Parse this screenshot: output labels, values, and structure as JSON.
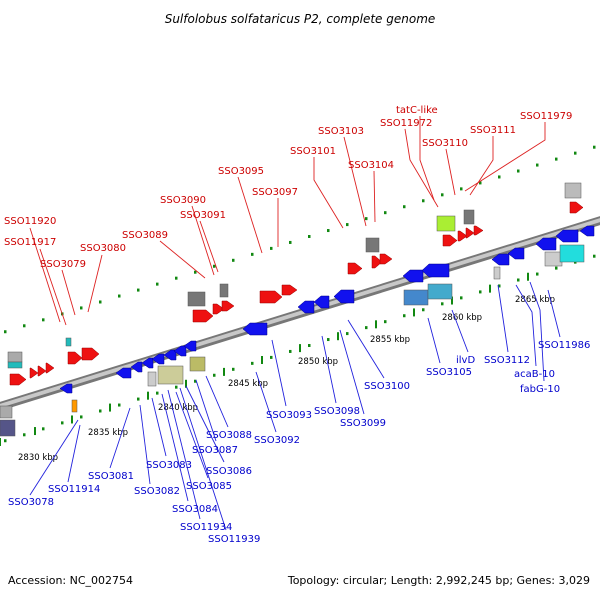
{
  "title": "Sulfolobus solfataricus P2, complete genome",
  "footer": {
    "accession": "Accession: NC_002754",
    "topology": "Topology: circular; Length: 2,992,245 bp; Genes: 3,029"
  },
  "colors": {
    "forward_gene": "#ee1111",
    "reverse_gene": "#1111ee",
    "forward_label": "#cc0000",
    "reverse_label": "#0000cc",
    "backbone": "#888888",
    "grid_dots": "#118811"
  },
  "kbp_ticks": [
    "2830 kbp",
    "2835 kbp",
    "2840 kbp",
    "2845 kbp",
    "2850 kbp",
    "2855 kbp",
    "2860 kbp",
    "2865 kbp"
  ],
  "forward_labels": [
    "SSO11920",
    "SSO11917",
    "SSO3079",
    "SSO3080",
    "SSO3089",
    "SSO3090",
    "SSO3091",
    "SSO3095",
    "SSO3097",
    "SSO3101",
    "SSO3103",
    "SSO3104",
    "tatC-like",
    "SSO11972",
    "SSO3110",
    "SSO3111",
    "SSO11979"
  ],
  "reverse_labels": [
    "SSO3078",
    "SSO11914",
    "SSO3081",
    "SSO3082",
    "SSO3083",
    "SSO3084",
    "SSO11934",
    "SSO11939",
    "SSO3085",
    "SSO3086",
    "SSO3087",
    "SSO3088",
    "SSO3092",
    "SSO3093",
    "SSO3098",
    "SSO3099",
    "SSO3100",
    "SSO3105",
    "ilvD",
    "SSO3112",
    "acaB-10",
    "fabG-10",
    "SSO11986"
  ]
}
